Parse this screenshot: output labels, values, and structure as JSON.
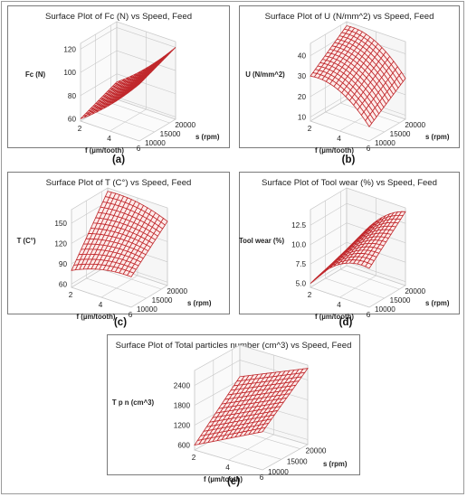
{
  "figure": {
    "panel_labels": [
      "(a)",
      "(b)",
      "(c)",
      "(d)",
      "(e)"
    ]
  },
  "chart_data": [
    {
      "type": "surface",
      "title": "Surface Plot of Fc (N) vs Speed, Feed",
      "xlabel": "f (µm/tooth)",
      "ylabel": "s (rpm)",
      "zlabel": "Fc (N)",
      "x_ticks": [
        "2",
        "4",
        "6"
      ],
      "y_ticks": [
        "10000",
        "15000",
        "20000"
      ],
      "z_ticks": [
        "60",
        "80",
        "100",
        "120"
      ],
      "xlim": [
        2,
        6
      ],
      "ylim": [
        10000,
        22000
      ],
      "zlim": [
        58,
        125
      ],
      "x": [
        2,
        6
      ],
      "y": [
        10000,
        22000
      ],
      "z_corners": {
        "f2_s10000": 60,
        "f6_s10000": 107,
        "f2_s22000": 73,
        "f6_s22000": 120
      },
      "curvature": -3,
      "grid_lines": 15,
      "color": "#c0282c"
    },
    {
      "type": "surface",
      "title": "Surface Plot of U (N/mm^2) vs Speed, Feed",
      "xlabel": "f (µm/tooth)",
      "ylabel": "s (rpm)",
      "zlabel": "U (N/mm^2)",
      "x_ticks": [
        "2",
        "4",
        "6"
      ],
      "y_ticks": [
        "10000",
        "15000",
        "20000"
      ],
      "z_ticks": [
        "10",
        "20",
        "30",
        "40"
      ],
      "xlim": [
        2,
        6
      ],
      "ylim": [
        10000,
        22000
      ],
      "zlim": [
        8,
        46
      ],
      "x": [
        2,
        6
      ],
      "y": [
        10000,
        22000
      ],
      "z_corners": {
        "f2_s10000": 30,
        "f6_s10000": 15,
        "f2_s22000": 44,
        "f6_s22000": 28
      },
      "curvature": 5,
      "grid_lines": 15,
      "color": "#c0282c"
    },
    {
      "type": "surface",
      "title": "Surface Plot of T (C°) vs Speed, Feed",
      "xlabel": "f (µm/tooth)",
      "ylabel": "s (rpm)",
      "zlabel": "T (C°)",
      "x_ticks": [
        "2",
        "4",
        "6"
      ],
      "y_ticks": [
        "10000",
        "15000",
        "20000"
      ],
      "z_ticks": [
        "60",
        "90",
        "120",
        "150"
      ],
      "xlim": [
        2,
        6
      ],
      "ylim": [
        10000,
        22000
      ],
      "zlim": [
        55,
        170
      ],
      "x": [
        2,
        6
      ],
      "y": [
        10000,
        22000
      ],
      "z_corners": {
        "f2_s10000": 80,
        "f6_s10000": 100,
        "f2_s22000": 165,
        "f6_s22000": 150
      },
      "curvature": 6,
      "grid_lines": 15,
      "color": "#c0282c"
    },
    {
      "type": "surface",
      "title": "Surface Plot of Tool wear (%) vs Speed, Feed",
      "xlabel": "f (µm/tooth)",
      "ylabel": "s (rpm)",
      "zlabel": "Tool wear (%)",
      "x_ticks": [
        "2",
        "4",
        "6"
      ],
      "y_ticks": [
        "10000",
        "15000",
        "20000"
      ],
      "z_ticks": [
        "5.0",
        "7.5",
        "10.0",
        "12.5"
      ],
      "xlim": [
        2,
        6
      ],
      "ylim": [
        10000,
        22000
      ],
      "zlim": [
        4.5,
        14.5
      ],
      "x": [
        2,
        6
      ],
      "y": [
        10000,
        22000
      ],
      "z_corners": {
        "f2_s10000": 5.0,
        "f6_s10000": 9.5,
        "f2_s22000": 6.0,
        "f6_s22000": 14.0
      },
      "curvature": 1.5,
      "grid_lines": 15,
      "color": "#c0282c"
    },
    {
      "type": "surface",
      "title": "Surface Plot of Total particles number (cm^3) vs Speed, Feed",
      "xlabel": "f (µm/tooth)",
      "ylabel": "s (rpm)",
      "zlabel": "T p n (cm^3)",
      "x_ticks": [
        "2",
        "4",
        "6"
      ],
      "y_ticks": [
        "10000",
        "15000",
        "20000"
      ],
      "z_ticks": [
        "600",
        "1200",
        "1800",
        "2400"
      ],
      "xlim": [
        2,
        6
      ],
      "ylim": [
        10000,
        22000
      ],
      "zlim": [
        450,
        2850
      ],
      "x": [
        2,
        6
      ],
      "y": [
        10000,
        22000
      ],
      "z_corners": {
        "f2_s10000": 600,
        "f6_s10000": 1600,
        "f2_s22000": 1900,
        "f6_s22000": 2750
      },
      "curvature": 0,
      "grid_lines": 15,
      "color": "#c0282c"
    }
  ]
}
